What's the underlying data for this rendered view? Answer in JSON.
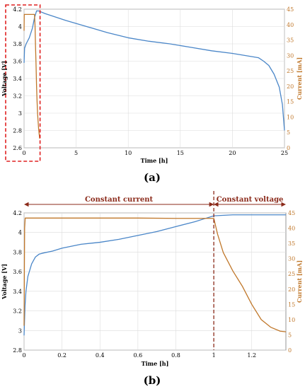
{
  "colors": {
    "voltage": "#4a86c8",
    "current": "#c0772a",
    "current_axis": "#c0772a",
    "grid": "#dcdcdc",
    "highlight_box": "#e02020",
    "divider": "#8b2a1a"
  },
  "chart_data": [
    {
      "type": "line",
      "panel_label": "(a)",
      "xlabel": "Time [h]",
      "ylabel_left": "Voltage [V]",
      "ylabel_right": "Current [mA]",
      "xlim": [
        0,
        25
      ],
      "ylim_left": [
        2.6,
        4.2
      ],
      "ylim_right": [
        0,
        45
      ],
      "x_ticks": [
        "0",
        "5",
        "10",
        "15",
        "20",
        "25"
      ],
      "y_ticks_left": [
        "2.6",
        "2.8",
        "3",
        "3.2",
        "3.4",
        "3.6",
        "3.8",
        "4",
        "4.2"
      ],
      "y_ticks_right": [
        "0",
        "5",
        "10",
        "15",
        "20",
        "25",
        "30",
        "35",
        "40",
        "45"
      ],
      "grid": true,
      "highlight_box_x": [
        0,
        1.4
      ],
      "series": [
        {
          "axis": "left",
          "x": [
            0,
            0.05,
            0.2,
            0.5,
            0.8,
            1.0,
            1.2,
            1.4,
            2,
            4,
            6,
            8,
            10,
            12,
            14,
            16,
            18,
            20,
            22,
            22.5,
            23,
            23.5,
            24,
            24.5,
            24.8,
            25
          ],
          "y": [
            3.58,
            3.75,
            3.8,
            3.87,
            3.98,
            4.1,
            4.18,
            4.18,
            4.15,
            4.07,
            4.0,
            3.93,
            3.87,
            3.83,
            3.8,
            3.76,
            3.72,
            3.69,
            3.65,
            3.64,
            3.6,
            3.55,
            3.45,
            3.3,
            3.1,
            2.8
          ]
        },
        {
          "axis": "right",
          "x": [
            0,
            0.02,
            1.0,
            1.05,
            1.1,
            1.15,
            1.2,
            1.25,
            1.3,
            1.4,
            1.5
          ],
          "y": [
            38,
            43.3,
            43.3,
            40,
            33,
            27,
            20,
            15,
            11,
            6,
            3
          ]
        }
      ]
    },
    {
      "type": "line",
      "panel_label": "(b)",
      "xlabel": "Time [h]",
      "ylabel_left": "Voltage [V]",
      "ylabel_right": "Current [mA]",
      "xlim": [
        0,
        1.38
      ],
      "ylim_left": [
        2.8,
        4.2
      ],
      "ylim_right": [
        0,
        45
      ],
      "x_ticks": [
        "0",
        "0.2",
        "0.4",
        "0.6",
        "0.8",
        "1",
        "1.2"
      ],
      "y_ticks_left": [
        "2.8",
        "3",
        "3.2",
        "3.4",
        "3.6",
        "3.8",
        "4",
        "4.2"
      ],
      "y_ticks_right": [
        "0",
        "5",
        "10",
        "15",
        "20",
        "25",
        "30",
        "35",
        "40",
        "45"
      ],
      "grid": true,
      "divider_x": 1.0,
      "region_labels": [
        "Constant current",
        "Constant voltage"
      ],
      "series": [
        {
          "axis": "left",
          "x": [
            0,
            0.005,
            0.01,
            0.02,
            0.04,
            0.06,
            0.08,
            0.1,
            0.15,
            0.2,
            0.3,
            0.4,
            0.5,
            0.6,
            0.7,
            0.8,
            0.9,
            0.95,
            1.0,
            1.1,
            1.2,
            1.3,
            1.38
          ],
          "y": [
            2.95,
            3.25,
            3.4,
            3.55,
            3.68,
            3.75,
            3.78,
            3.79,
            3.81,
            3.84,
            3.88,
            3.9,
            3.93,
            3.97,
            4.01,
            4.06,
            4.11,
            4.14,
            4.17,
            4.18,
            4.18,
            4.18,
            4.18
          ]
        },
        {
          "axis": "right",
          "x": [
            0,
            0.003,
            0.006,
            0.2,
            0.4,
            0.6,
            0.8,
            1.0,
            1.02,
            1.05,
            1.1,
            1.15,
            1.2,
            1.25,
            1.3,
            1.35,
            1.38
          ],
          "y": [
            8,
            40,
            43.3,
            43.3,
            43.3,
            43.3,
            43.2,
            43.2,
            38,
            32,
            26,
            21,
            15,
            10,
            7.5,
            6.2,
            6
          ]
        }
      ]
    }
  ]
}
